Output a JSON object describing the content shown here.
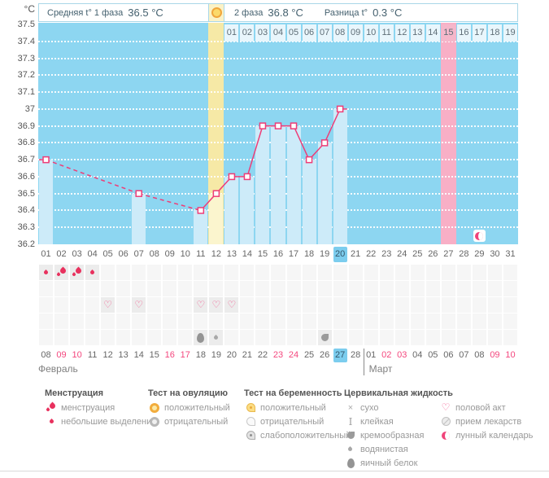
{
  "header": {
    "unit": "°C",
    "phase1_label": "Средняя t° 1 фаза",
    "phase1_value": "36.5 °C",
    "phase2_label": "2 фаза",
    "phase2_value": "36.8 °C",
    "diff_label": "Разница t°",
    "diff_value": "0.3 °C"
  },
  "chart_data": {
    "type": "line",
    "description": "График базальной температуры (basal body temperature cycle chart)",
    "ylabel": "°C",
    "ylim": [
      36.2,
      37.5
    ],
    "ytick_step": 0.1,
    "yticks": [
      "37.5",
      "37.4",
      "37.3",
      "37.2",
      "37.1",
      "37",
      "36.9",
      "36.8",
      "36.7",
      "36.6",
      "36.5",
      "36.4",
      "36.3",
      "36.2"
    ],
    "cycle_days": 31,
    "points": [
      {
        "day": 1,
        "temp": 36.7
      },
      {
        "day": 7,
        "temp": 36.5
      },
      {
        "day": 11,
        "temp": 36.4
      },
      {
        "day": 12,
        "temp": 36.5
      },
      {
        "day": 13,
        "temp": 36.6
      },
      {
        "day": 14,
        "temp": 36.6
      },
      {
        "day": 15,
        "temp": 36.9
      },
      {
        "day": 16,
        "temp": 36.9
      },
      {
        "day": 17,
        "temp": 36.9
      },
      {
        "day": 18,
        "temp": 36.7
      },
      {
        "day": 19,
        "temp": 36.8
      },
      {
        "day": 20,
        "temp": 37
      }
    ],
    "dashed_segments": [
      [
        1,
        7
      ],
      [
        7,
        11
      ]
    ],
    "solid_from_day": 11,
    "ovulation_day": 12,
    "ovulation_label": "ОВУЛЯЦИЯ",
    "expected_period_day": 27,
    "moon_day": 29,
    "current_day": 20,
    "dpo_start_day": 13,
    "dpo_labels": [
      "01",
      "02",
      "03",
      "04",
      "05",
      "06",
      "07",
      "08",
      "09",
      "10",
      "11",
      "12",
      "13",
      "14",
      "15",
      "16",
      "17",
      "18",
      "19"
    ],
    "dpo_highlight": "15",
    "grid": true,
    "legend_position": "bottom"
  },
  "days_row": {
    "labels": [
      "01",
      "02",
      "03",
      "04",
      "05",
      "06",
      "07",
      "08",
      "09",
      "10",
      "11",
      "12",
      "13",
      "14",
      "15",
      "16",
      "17",
      "18",
      "19",
      "20",
      "21",
      "22",
      "23",
      "24",
      "25",
      "26",
      "27",
      "28",
      "29",
      "30",
      "31"
    ],
    "current": "20"
  },
  "symbol_rows": [
    {
      "name": "menstruation",
      "cells": [
        {
          "day": 1,
          "icon": "drop-small"
        },
        {
          "day": 2,
          "icon": "drops-heavy"
        },
        {
          "day": 3,
          "icon": "drops-heavy"
        },
        {
          "day": 4,
          "icon": "drop-small"
        }
      ]
    },
    {
      "name": "tests",
      "cells": []
    },
    {
      "name": "intercourse",
      "cells": [
        {
          "day": 5,
          "icon": "heart"
        },
        {
          "day": 7,
          "icon": "heart"
        },
        {
          "day": 11,
          "icon": "heart"
        },
        {
          "day": 12,
          "icon": "heart"
        },
        {
          "day": 13,
          "icon": "heart"
        }
      ]
    },
    {
      "name": "medication",
      "cells": []
    },
    {
      "name": "cervical-fluid",
      "cells": [
        {
          "day": 11,
          "icon": "egg-white"
        },
        {
          "day": 12,
          "icon": "watery"
        },
        {
          "day": 19,
          "icon": "creamy"
        }
      ]
    }
  ],
  "dates_row": {
    "february": [
      {
        "d": "08"
      },
      {
        "d": "09",
        "weekend": true
      },
      {
        "d": "10",
        "weekend": true
      },
      {
        "d": "11"
      },
      {
        "d": "12"
      },
      {
        "d": "13"
      },
      {
        "d": "14"
      },
      {
        "d": "15"
      },
      {
        "d": "16",
        "weekend": true
      },
      {
        "d": "17",
        "weekend": true
      },
      {
        "d": "18"
      },
      {
        "d": "19"
      },
      {
        "d": "20"
      },
      {
        "d": "21"
      },
      {
        "d": "22"
      },
      {
        "d": "23",
        "weekend": true
      },
      {
        "d": "24",
        "weekend": true
      },
      {
        "d": "25"
      },
      {
        "d": "26"
      },
      {
        "d": "27",
        "current": true
      },
      {
        "d": "28"
      }
    ],
    "march": [
      {
        "d": "01"
      },
      {
        "d": "02",
        "weekend": true
      },
      {
        "d": "03",
        "weekend": true
      },
      {
        "d": "04"
      },
      {
        "d": "05"
      },
      {
        "d": "06"
      },
      {
        "d": "07"
      },
      {
        "d": "08"
      },
      {
        "d": "09",
        "weekend": true
      },
      {
        "d": "10",
        "weekend": true
      }
    ]
  },
  "months": {
    "february": "Февраль",
    "march": "Март"
  },
  "legend": [
    {
      "title": "Менструация",
      "items": [
        {
          "icon": "drops-heavy",
          "label": "менструация"
        },
        {
          "icon": "drop-small",
          "label": "небольшие выделения"
        }
      ]
    },
    {
      "title": "Тест на овуляцию",
      "items": [
        {
          "icon": "ovu-pos",
          "label": "положительный"
        },
        {
          "icon": "ovu-neg",
          "label": "отрицательный"
        }
      ]
    },
    {
      "title": "Тест на беременность",
      "items": [
        {
          "icon": "preg-pos",
          "label": "положительный"
        },
        {
          "icon": "preg-neg",
          "label": "отрицательный"
        },
        {
          "icon": "preg-weak",
          "label": "слабоположительный"
        }
      ]
    },
    {
      "title": "Цервикальная жидкость",
      "items": [
        {
          "icon": "dry",
          "label": "сухо"
        },
        {
          "icon": "sticky",
          "label": "клейкая"
        },
        {
          "icon": "creamy",
          "label": "кремообразная"
        },
        {
          "icon": "watery",
          "label": "водянистая"
        },
        {
          "icon": "egg-white",
          "label": "яичный белок"
        }
      ]
    },
    {
      "title": "",
      "items": [
        {
          "icon": "heart",
          "label": "половой акт"
        },
        {
          "icon": "pills",
          "label": "прием лекарств"
        },
        {
          "icon": "moon",
          "label": "лунный календарь"
        }
      ]
    }
  ],
  "colors": {
    "chart_bg": "#8DD6F1",
    "measured_bar": "#CDEBF9",
    "ovulation_column": "#F6E9A6",
    "ovulation_bar": "#FBF5CE",
    "period_column": "#F8AFC6",
    "dpo_cell": "#E9F6FC",
    "dpo_cell_highlight": "#F5B7CA",
    "line": "#EE3D77",
    "current_day_bg": "#7CCDEE",
    "weekend_text": "#F4477E",
    "grid_dots": "#FFFFFF"
  }
}
